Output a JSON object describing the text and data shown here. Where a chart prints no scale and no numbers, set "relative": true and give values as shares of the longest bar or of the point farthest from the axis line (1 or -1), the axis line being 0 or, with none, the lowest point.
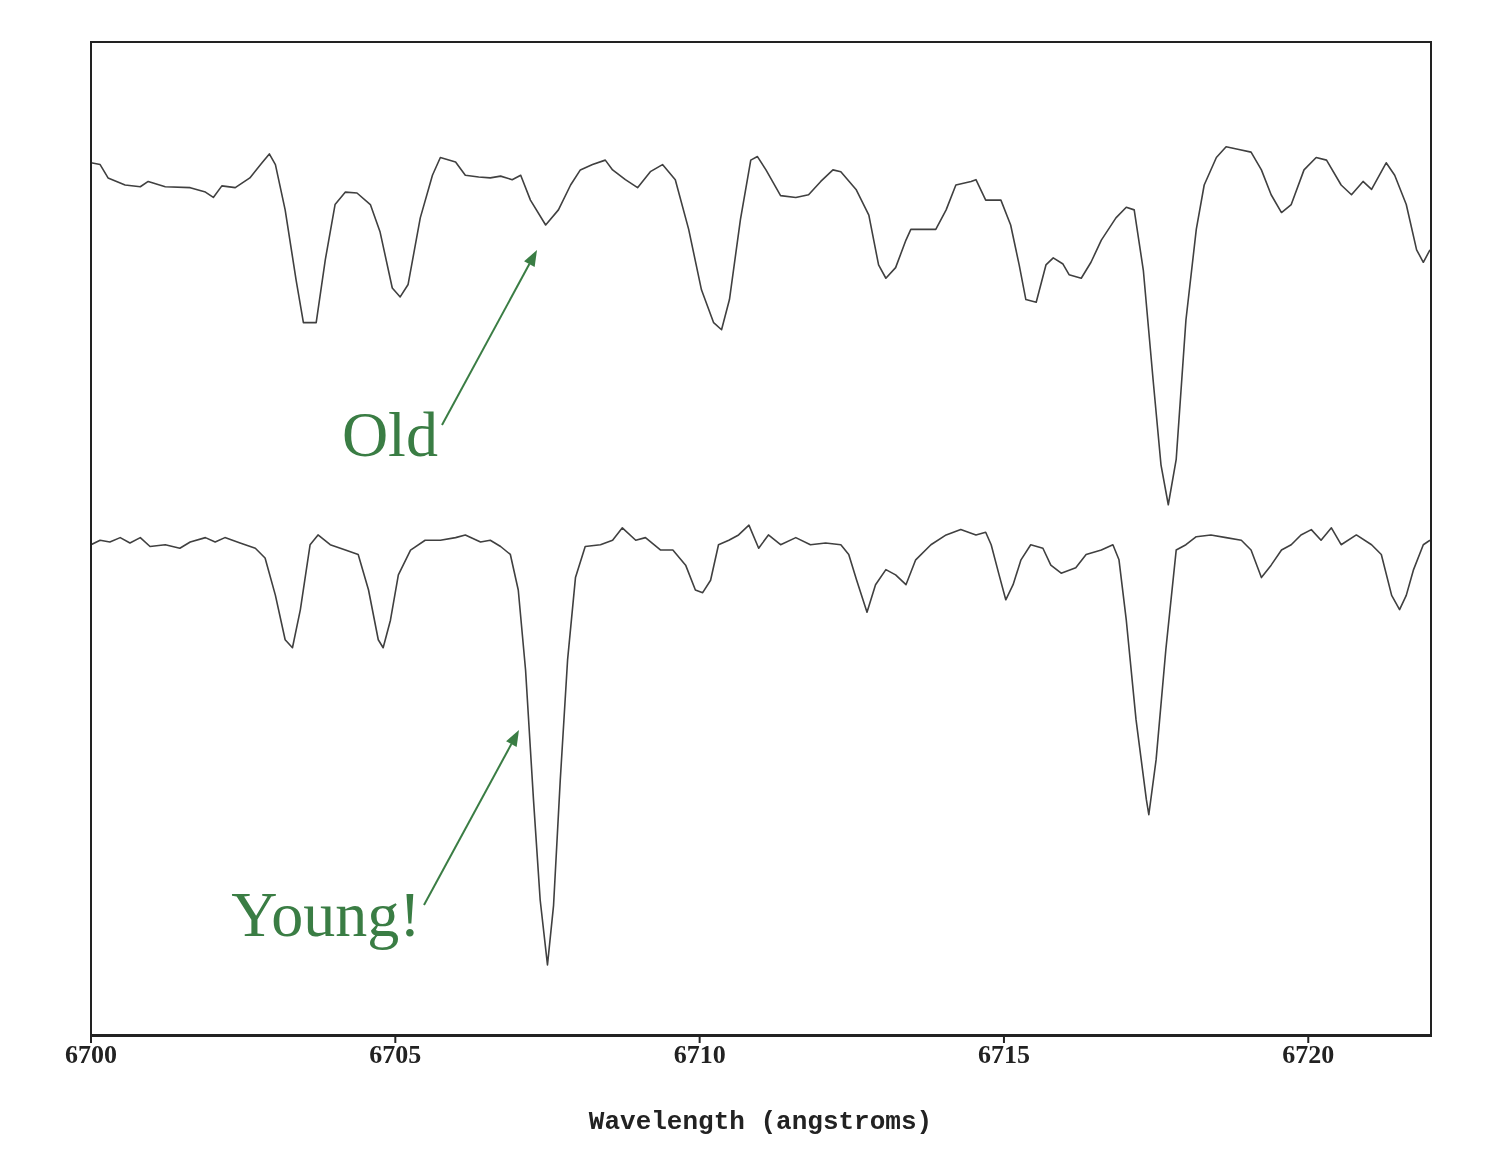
{
  "chart_data": {
    "type": "line",
    "xlabel": "Wavelength (angstroms)",
    "relative": true,
    "xlim": [
      6700,
      6722
    ],
    "xticks": [
      6700,
      6705,
      6710,
      6715,
      6720
    ],
    "marker": "none",
    "line_style": "solid",
    "series": [
      {
        "color": "#404040",
        "x": [
          6700.0,
          6700.15,
          6700.28,
          6700.56,
          6700.81,
          6700.94,
          6701.22,
          6701.63,
          6701.88,
          6702.01,
          6702.15,
          6702.37,
          6702.61,
          6702.81,
          6702.93,
          6703.03,
          6703.19,
          6703.37,
          6703.49,
          6703.7,
          6703.85,
          6704.01,
          6704.18,
          6704.37,
          6704.59,
          6704.75,
          6704.95,
          6705.08,
          6705.21,
          6705.41,
          6705.61,
          6705.74,
          6705.99,
          6706.15,
          6706.37,
          6706.56,
          6706.73,
          6706.92,
          6707.06,
          6707.22,
          6707.47,
          6707.68,
          6707.88,
          6708.04,
          6708.24,
          6708.45,
          6708.57,
          6708.78,
          6708.98,
          6709.19,
          6709.39,
          6709.6,
          6709.82,
          6710.03,
          6710.23,
          6710.36,
          6710.49,
          6710.67,
          6710.84,
          6710.95,
          6711.09,
          6711.33,
          6711.58,
          6711.79,
          6711.99,
          6712.19,
          6712.32,
          6712.57,
          6712.78,
          6712.94,
          6713.06,
          6713.22,
          6713.39,
          6713.47,
          6713.88,
          6714.05,
          6714.21,
          6714.46,
          6714.54,
          6714.7,
          6714.95,
          6715.11,
          6715.25,
          6715.36,
          6715.53,
          6715.69,
          6715.81,
          6715.97,
          6716.07,
          6716.27,
          6716.43,
          6716.6,
          6716.84,
          6717.01,
          6717.14,
          6717.29,
          6717.45,
          6717.58,
          6717.7,
          6717.83,
          6717.99,
          6718.16,
          6718.29,
          6718.49,
          6718.65,
          6718.86,
          6719.06,
          6719.23,
          6719.39,
          6719.56,
          6719.72,
          6719.93,
          6720.13,
          6720.3,
          6720.54,
          6720.71,
          6720.9,
          6721.04,
          6721.28,
          6721.42,
          6721.61,
          6721.78,
          6721.89,
          6722.0
        ],
        "values": [
          0.982,
          0.98,
          0.965,
          0.957,
          0.955,
          0.961,
          0.955,
          0.954,
          0.949,
          0.943,
          0.956,
          0.954,
          0.965,
          0.982,
          0.992,
          0.98,
          0.929,
          0.85,
          0.802,
          0.802,
          0.873,
          0.935,
          0.949,
          0.948,
          0.935,
          0.904,
          0.841,
          0.831,
          0.845,
          0.92,
          0.968,
          0.988,
          0.983,
          0.968,
          0.966,
          0.965,
          0.967,
          0.963,
          0.968,
          0.94,
          0.912,
          0.929,
          0.957,
          0.974,
          0.98,
          0.985,
          0.974,
          0.963,
          0.954,
          0.972,
          0.98,
          0.963,
          0.907,
          0.839,
          0.802,
          0.794,
          0.828,
          0.918,
          0.985,
          0.989,
          0.974,
          0.945,
          0.943,
          0.946,
          0.961,
          0.974,
          0.972,
          0.952,
          0.923,
          0.867,
          0.852,
          0.864,
          0.895,
          0.907,
          0.907,
          0.929,
          0.957,
          0.961,
          0.963,
          0.94,
          0.94,
          0.912,
          0.867,
          0.828,
          0.825,
          0.867,
          0.875,
          0.868,
          0.856,
          0.852,
          0.87,
          0.895,
          0.92,
          0.932,
          0.929,
          0.861,
          0.738,
          0.642,
          0.597,
          0.648,
          0.805,
          0.907,
          0.957,
          0.988,
          1.0,
          0.997,
          0.994,
          0.974,
          0.946,
          0.926,
          0.935,
          0.974,
          0.988,
          0.985,
          0.957,
          0.946,
          0.961,
          0.952,
          0.982,
          0.968,
          0.935,
          0.884,
          0.87,
          0.884
        ]
      },
      {
        "color": "#404040",
        "x": [
          6700.0,
          6700.15,
          6700.31,
          6700.48,
          6700.64,
          6700.81,
          6700.97,
          6701.22,
          6701.46,
          6701.63,
          6701.88,
          6702.04,
          6702.2,
          6702.45,
          6702.7,
          6702.86,
          6703.03,
          6703.19,
          6703.31,
          6703.44,
          6703.6,
          6703.73,
          6703.93,
          6704.18,
          6704.39,
          6704.56,
          6704.72,
          6704.8,
          6704.92,
          6705.05,
          6705.25,
          6705.49,
          6705.74,
          6705.99,
          6706.15,
          6706.4,
          6706.56,
          6706.73,
          6706.89,
          6707.02,
          6707.14,
          6707.27,
          6707.38,
          6707.5,
          6707.6,
          6707.71,
          6707.83,
          6707.96,
          6708.12,
          6708.37,
          6708.57,
          6708.73,
          6708.95,
          6709.11,
          6709.36,
          6709.56,
          6709.77,
          6709.93,
          6710.05,
          6710.18,
          6710.31,
          6710.48,
          6710.64,
          6710.81,
          6710.97,
          6711.13,
          6711.33,
          6711.58,
          6711.82,
          6712.07,
          6712.32,
          6712.45,
          6712.58,
          6712.75,
          6712.89,
          6713.06,
          6713.22,
          6713.39,
          6713.55,
          6713.8,
          6714.05,
          6714.29,
          6714.54,
          6714.7,
          6714.79,
          6714.92,
          6715.03,
          6715.15,
          6715.28,
          6715.44,
          6715.64,
          6715.77,
          6715.94,
          6716.18,
          6716.35,
          6716.6,
          6716.79,
          6716.89,
          6717.01,
          6717.17,
          6717.34,
          6717.38,
          6717.5,
          6717.66,
          6717.83,
          6717.99,
          6718.16,
          6718.4,
          6718.65,
          6718.9,
          6719.06,
          6719.23,
          6719.39,
          6719.56,
          6719.72,
          6719.88,
          6720.05,
          6720.21,
          6720.38,
          6720.54,
          6720.79,
          6721.04,
          6721.2,
          6721.37,
          6721.5,
          6721.61,
          6721.73,
          6721.89,
          6722.0
        ],
        "values": [
          0.552,
          0.557,
          0.555,
          0.56,
          0.554,
          0.56,
          0.55,
          0.552,
          0.548,
          0.555,
          0.56,
          0.555,
          0.56,
          0.554,
          0.548,
          0.537,
          0.495,
          0.445,
          0.436,
          0.479,
          0.552,
          0.563,
          0.552,
          0.546,
          0.541,
          0.501,
          0.445,
          0.436,
          0.467,
          0.518,
          0.546,
          0.557,
          0.557,
          0.56,
          0.563,
          0.555,
          0.557,
          0.55,
          0.541,
          0.501,
          0.411,
          0.265,
          0.152,
          0.079,
          0.146,
          0.287,
          0.422,
          0.515,
          0.55,
          0.552,
          0.557,
          0.571,
          0.557,
          0.56,
          0.546,
          0.546,
          0.529,
          0.501,
          0.498,
          0.512,
          0.552,
          0.557,
          0.563,
          0.574,
          0.548,
          0.563,
          0.552,
          0.56,
          0.552,
          0.554,
          0.552,
          0.541,
          0.512,
          0.476,
          0.507,
          0.524,
          0.518,
          0.507,
          0.535,
          0.552,
          0.563,
          0.569,
          0.563,
          0.566,
          0.552,
          0.518,
          0.49,
          0.507,
          0.535,
          0.552,
          0.548,
          0.529,
          0.52,
          0.526,
          0.541,
          0.546,
          0.552,
          0.535,
          0.467,
          0.355,
          0.265,
          0.248,
          0.31,
          0.434,
          0.546,
          0.552,
          0.561,
          0.563,
          0.56,
          0.557,
          0.546,
          0.515,
          0.529,
          0.546,
          0.552,
          0.563,
          0.569,
          0.557,
          0.571,
          0.552,
          0.563,
          0.552,
          0.541,
          0.495,
          0.479,
          0.495,
          0.524,
          0.552,
          0.557
        ]
      }
    ],
    "annotations": [
      "Old",
      "Young!"
    ]
  }
}
